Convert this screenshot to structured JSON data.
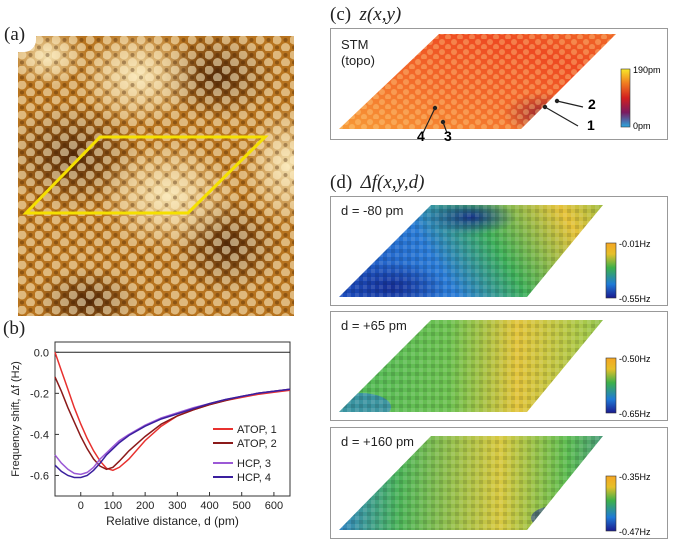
{
  "panel_a": {
    "label": "(a)"
  },
  "panel_b": {
    "label": "(b)",
    "chart_data": {
      "type": "line",
      "title": "",
      "xlabel": "Relative distance, d (pm)",
      "ylabel": "Frequency shift, Δf (Hz)",
      "xlim": [
        -80,
        650
      ],
      "ylim": [
        -0.7,
        0.05
      ],
      "x_ticks": [
        0,
        100,
        200,
        300,
        400,
        500,
        600
      ],
      "y_ticks": [
        0.0,
        -0.2,
        -0.4,
        -0.6
      ],
      "x_tick_labels": [
        "0",
        "100",
        "200",
        "300",
        "400",
        "500",
        "600"
      ],
      "y_tick_labels": [
        "0.0",
        "-0.2",
        "-0.4",
        "-0.6"
      ],
      "legend_position": "center-right",
      "series": [
        {
          "name": "ATOP, 1",
          "color": "#e8312f",
          "x": [
            -80,
            -60,
            -40,
            -20,
            0,
            20,
            40,
            60,
            80,
            100,
            120,
            150,
            200,
            250,
            300,
            350,
            400,
            450,
            500,
            550,
            600,
            650
          ],
          "y": [
            0.0,
            -0.09,
            -0.18,
            -0.27,
            -0.35,
            -0.42,
            -0.48,
            -0.53,
            -0.565,
            -0.575,
            -0.56,
            -0.52,
            -0.43,
            -0.36,
            -0.31,
            -0.28,
            -0.255,
            -0.235,
            -0.22,
            -0.205,
            -0.195,
            -0.185
          ]
        },
        {
          "name": "ATOP, 2",
          "color": "#8b1a1a",
          "x": [
            -80,
            -60,
            -40,
            -20,
            0,
            20,
            40,
            60,
            80,
            100,
            120,
            150,
            200,
            250,
            300,
            350,
            400,
            450,
            500,
            550,
            600,
            650
          ],
          "y": [
            -0.12,
            -0.19,
            -0.27,
            -0.34,
            -0.41,
            -0.47,
            -0.52,
            -0.555,
            -0.57,
            -0.56,
            -0.53,
            -0.48,
            -0.41,
            -0.35,
            -0.31,
            -0.28,
            -0.255,
            -0.235,
            -0.215,
            -0.2,
            -0.19,
            -0.18
          ]
        },
        {
          "name": "HCP, 3",
          "color": "#9b59d6",
          "x": [
            -80,
            -60,
            -40,
            -20,
            0,
            20,
            40,
            60,
            80,
            100,
            120,
            150,
            200,
            250,
            300,
            350,
            400,
            450,
            500,
            550,
            600,
            650
          ],
          "y": [
            -0.5,
            -0.54,
            -0.57,
            -0.59,
            -0.595,
            -0.585,
            -0.56,
            -0.52,
            -0.49,
            -0.46,
            -0.43,
            -0.4,
            -0.355,
            -0.32,
            -0.295,
            -0.27,
            -0.25,
            -0.23,
            -0.215,
            -0.2,
            -0.19,
            -0.18
          ]
        },
        {
          "name": "HCP, 4",
          "color": "#3a1f9e",
          "x": [
            -80,
            -60,
            -40,
            -20,
            0,
            20,
            40,
            60,
            80,
            100,
            120,
            150,
            200,
            250,
            300,
            350,
            400,
            450,
            500,
            550,
            600,
            650
          ],
          "y": [
            -0.55,
            -0.58,
            -0.6,
            -0.61,
            -0.61,
            -0.6,
            -0.575,
            -0.54,
            -0.5,
            -0.47,
            -0.44,
            -0.405,
            -0.36,
            -0.325,
            -0.3,
            -0.275,
            -0.25,
            -0.23,
            -0.215,
            -0.2,
            -0.19,
            -0.18
          ]
        }
      ]
    }
  },
  "panel_c": {
    "label": "(c)",
    "title": "z(x,y)",
    "inset_title": "STM",
    "inset_subtitle": "(topo)",
    "colorbar_max": "190pm",
    "colorbar_min": "0pm",
    "markers": [
      "1",
      "2",
      "3",
      "4"
    ]
  },
  "panel_d": {
    "label": "(d)",
    "title": "Δf(x,y,d)",
    "maps": [
      {
        "d_label": "d = -80 pm",
        "cb_max": "-0.01Hz",
        "cb_min": "-0.55Hz"
      },
      {
        "d_label": "d = +65 pm",
        "cb_max": "-0.50Hz",
        "cb_min": "-0.65Hz"
      },
      {
        "d_label": "d = +160 pm",
        "cb_max": "-0.35Hz",
        "cb_min": "-0.47Hz"
      }
    ]
  }
}
